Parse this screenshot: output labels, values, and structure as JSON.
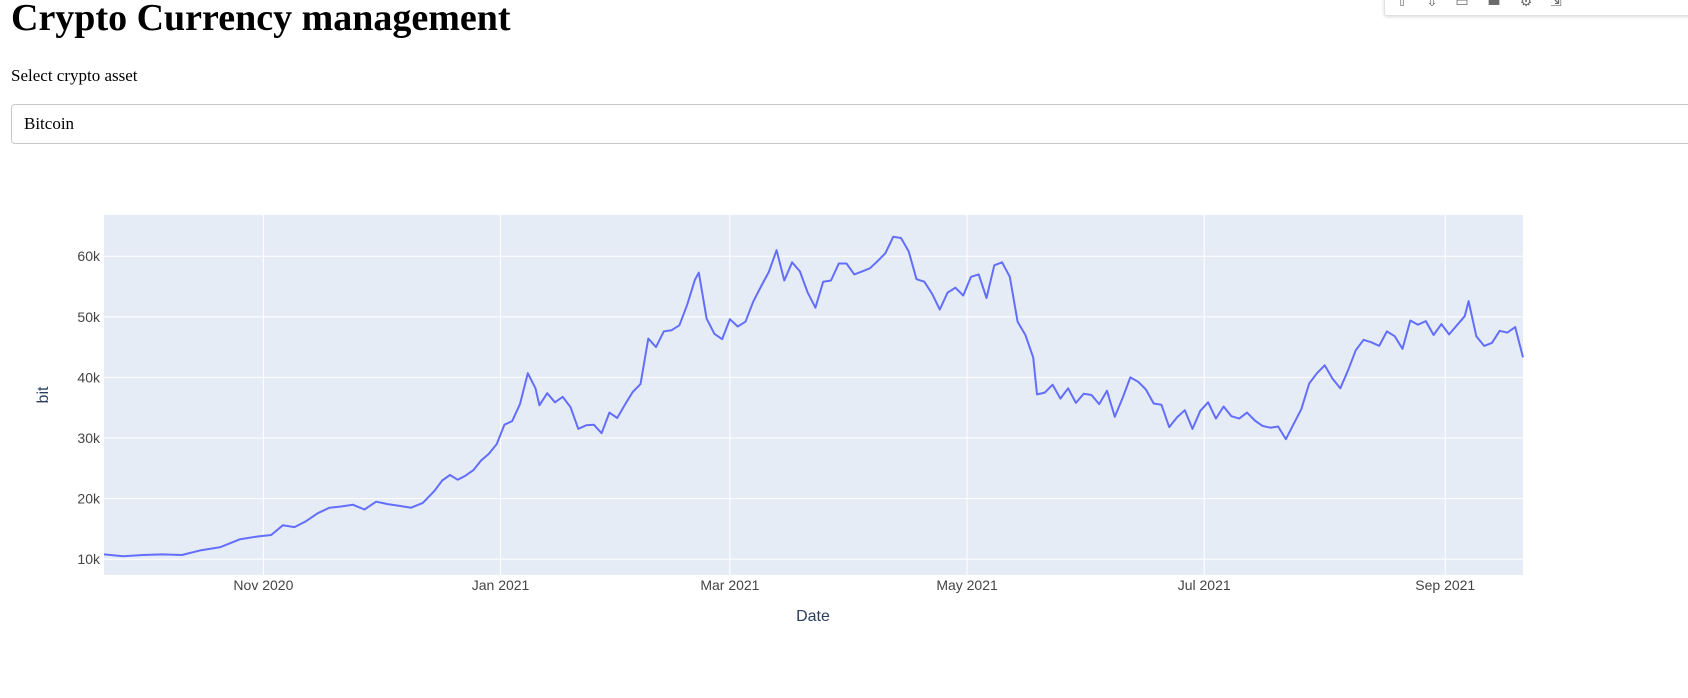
{
  "header": {
    "title": "Crypto Currency management"
  },
  "selector": {
    "label": "Select crypto asset",
    "value": "Bitcoin"
  },
  "modebar": {
    "icons": [
      "zoom-in-icon",
      "zoom-out-icon",
      "autoscale-icon",
      "compare-data-icon",
      "settings-icon",
      "reset-axes-icon"
    ]
  },
  "colors": {
    "line": "#636efa",
    "plot_bg": "#e5ecf6",
    "grid": "#ffffff",
    "tick_text": "#444444",
    "axis_title": "#2a3f5f"
  },
  "chart_data": {
    "type": "line",
    "xlabel": "Date",
    "ylabel": "bit",
    "x_tick_labels": [
      {
        "label": "Nov 2020",
        "date": "2020-11-01"
      },
      {
        "label": "Jan 2021",
        "date": "2021-01-01"
      },
      {
        "label": "Mar 2021",
        "date": "2021-03-01"
      },
      {
        "label": "May 2021",
        "date": "2021-05-01"
      },
      {
        "label": "Jul 2021",
        "date": "2021-07-01"
      },
      {
        "label": "Sep 2021",
        "date": "2021-09-01"
      }
    ],
    "y_ticks": [
      10000,
      20000,
      30000,
      40000,
      50000,
      60000
    ],
    "y_tick_labels": [
      "10k",
      "20k",
      "30k",
      "40k",
      "50k",
      "60k"
    ],
    "xlim": [
      "2020-09-21",
      "2021-09-21"
    ],
    "ylim": [
      7400,
      66800
    ],
    "grid": true,
    "series": [
      {
        "x": [
          "2020-09-21",
          "2020-09-26",
          "2020-10-01",
          "2020-10-06",
          "2020-10-11",
          "2020-10-16",
          "2020-10-21",
          "2020-10-26",
          "2020-10-31",
          "2020-11-03",
          "2020-11-06",
          "2020-11-09",
          "2020-11-12",
          "2020-11-15",
          "2020-11-18",
          "2020-11-21",
          "2020-11-24",
          "2020-11-27",
          "2020-11-30",
          "2020-12-03",
          "2020-12-06",
          "2020-12-09",
          "2020-12-12",
          "2020-12-15",
          "2020-12-17",
          "2020-12-19",
          "2020-12-21",
          "2020-12-23",
          "2020-12-25",
          "2020-12-27",
          "2020-12-29",
          "2020-12-31",
          "2021-01-02",
          "2021-01-04",
          "2021-01-06",
          "2021-01-08",
          "2021-01-10",
          "2021-01-11",
          "2021-01-13",
          "2021-01-15",
          "2021-01-17",
          "2021-01-19",
          "2021-01-21",
          "2021-01-23",
          "2021-01-25",
          "2021-01-27",
          "2021-01-29",
          "2021-01-31",
          "2021-02-02",
          "2021-02-04",
          "2021-02-06",
          "2021-02-08",
          "2021-02-10",
          "2021-02-12",
          "2021-02-14",
          "2021-02-16",
          "2021-02-18",
          "2021-02-20",
          "2021-02-21",
          "2021-02-23",
          "2021-02-25",
          "2021-02-27",
          "2021-03-01",
          "2021-03-03",
          "2021-03-05",
          "2021-03-07",
          "2021-03-09",
          "2021-03-11",
          "2021-03-13",
          "2021-03-15",
          "2021-03-17",
          "2021-03-19",
          "2021-03-21",
          "2021-03-23",
          "2021-03-25",
          "2021-03-27",
          "2021-03-29",
          "2021-03-31",
          "2021-04-02",
          "2021-04-04",
          "2021-04-06",
          "2021-04-08",
          "2021-04-10",
          "2021-04-12",
          "2021-04-14",
          "2021-04-16",
          "2021-04-18",
          "2021-04-20",
          "2021-04-22",
          "2021-04-24",
          "2021-04-26",
          "2021-04-28",
          "2021-04-30",
          "2021-05-02",
          "2021-05-04",
          "2021-05-06",
          "2021-05-08",
          "2021-05-10",
          "2021-05-12",
          "2021-05-14",
          "2021-05-16",
          "2021-05-18",
          "2021-05-19",
          "2021-05-21",
          "2021-05-23",
          "2021-05-25",
          "2021-05-27",
          "2021-05-29",
          "2021-05-31",
          "2021-06-02",
          "2021-06-04",
          "2021-06-06",
          "2021-06-08",
          "2021-06-10",
          "2021-06-12",
          "2021-06-14",
          "2021-06-16",
          "2021-06-18",
          "2021-06-20",
          "2021-06-22",
          "2021-06-24",
          "2021-06-26",
          "2021-06-28",
          "2021-06-30",
          "2021-07-02",
          "2021-07-04",
          "2021-07-06",
          "2021-07-08",
          "2021-07-10",
          "2021-07-12",
          "2021-07-14",
          "2021-07-16",
          "2021-07-18",
          "2021-07-20",
          "2021-07-22",
          "2021-07-24",
          "2021-07-26",
          "2021-07-28",
          "2021-07-30",
          "2021-08-01",
          "2021-08-03",
          "2021-08-05",
          "2021-08-07",
          "2021-08-09",
          "2021-08-11",
          "2021-08-13",
          "2021-08-15",
          "2021-08-17",
          "2021-08-19",
          "2021-08-21",
          "2021-08-23",
          "2021-08-25",
          "2021-08-27",
          "2021-08-29",
          "2021-08-31",
          "2021-09-02",
          "2021-09-04",
          "2021-09-06",
          "2021-09-07",
          "2021-09-09",
          "2021-09-11",
          "2021-09-13",
          "2021-09-15",
          "2021-09-17",
          "2021-09-19",
          "2021-09-21"
        ],
        "y": [
          10800,
          10500,
          10700,
          10800,
          10700,
          11500,
          12000,
          13300,
          13800,
          14000,
          15600,
          15300,
          16300,
          17600,
          18500,
          18700,
          19000,
          18200,
          19500,
          19100,
          18800,
          18500,
          19300,
          21300,
          23000,
          23900,
          23100,
          23800,
          24700,
          26300,
          27400,
          29000,
          32200,
          32800,
          35600,
          40700,
          38200,
          35400,
          37400,
          35900,
          36800,
          35100,
          31500,
          32100,
          32200,
          30800,
          34200,
          33300,
          35500,
          37600,
          38900,
          46400,
          45000,
          47600,
          47800,
          48600,
          52000,
          56100,
          57300,
          49700,
          47200,
          46300,
          49600,
          48400,
          49200,
          52500,
          55000,
          57400,
          61000,
          56000,
          59000,
          57500,
          54000,
          51500,
          55800,
          56000,
          58800,
          58800,
          57000,
          57500,
          58000,
          59200,
          60500,
          63200,
          63000,
          60800,
          56200,
          55800,
          53800,
          51200,
          54000,
          54800,
          53500,
          56600,
          57000,
          53100,
          58500,
          59000,
          56600,
          49200,
          47000,
          43300,
          37200,
          37500,
          38800,
          36500,
          38200,
          35800,
          37300,
          37100,
          35600,
          37800,
          33500,
          36600,
          40000,
          39300,
          38000,
          35700,
          35500,
          31800,
          33400,
          34600,
          31500,
          34500,
          35900,
          33200,
          35200,
          33600,
          33200,
          34200,
          32900,
          32000,
          31700,
          31900,
          29800,
          32300,
          34800,
          39000,
          40700,
          42000,
          39800,
          38200,
          41200,
          44500,
          46200,
          45800,
          45200,
          47600,
          46800,
          44700,
          49400,
          48700,
          49300,
          47000,
          48800,
          47100,
          48600,
          50100,
          52600,
          46800,
          45200,
          45700,
          47700,
          47400,
          48300,
          43300
        ]
      }
    ]
  }
}
